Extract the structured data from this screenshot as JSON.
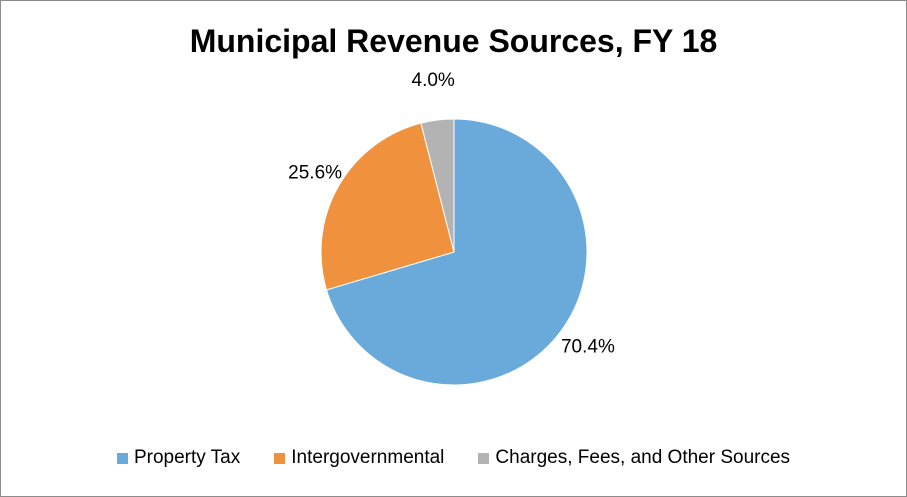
{
  "chart_data": {
    "type": "pie",
    "title": "Municipal Revenue Sources, FY 18",
    "categories": [
      "Property Tax",
      "Intergovernmental",
      "Charges, Fees, and Other Sources"
    ],
    "values": [
      70.4,
      25.6,
      4.0
    ],
    "data_labels": [
      "70.4%",
      "25.6%",
      "4.0%"
    ],
    "colors": [
      "#6aaadb",
      "#f0913e",
      "#b3b3b3"
    ],
    "start_angle_deg": 0,
    "direction": "clockwise",
    "legend_position": "bottom"
  }
}
